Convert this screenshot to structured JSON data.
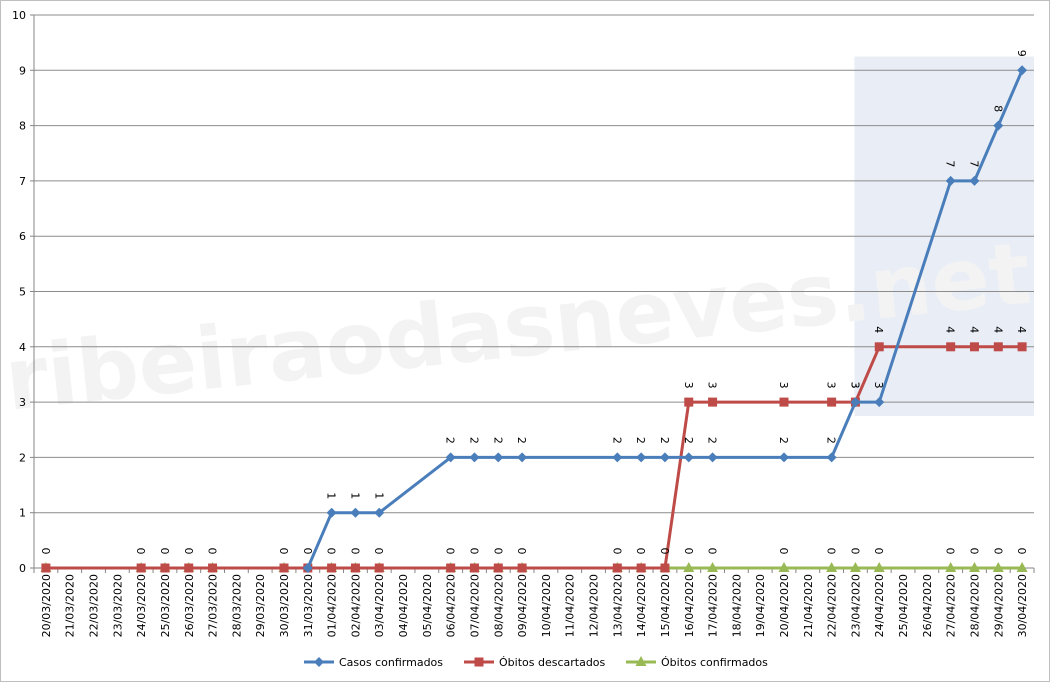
{
  "watermark": "ribeiraodasneves.net",
  "chart_data": {
    "type": "line",
    "title": "",
    "xlabel": "",
    "ylabel": "",
    "ylim": [
      0,
      10
    ],
    "yticks": [
      "0",
      "1",
      "2",
      "3",
      "4",
      "5",
      "6",
      "7",
      "8",
      "9",
      "10"
    ],
    "grid": true,
    "legend_position": "bottom",
    "categories": [
      "20/03/2020",
      "21/03/2020",
      "22/03/2020",
      "23/03/2020",
      "24/03/2020",
      "25/03/2020",
      "26/03/2020",
      "27/03/2020",
      "28/03/2020",
      "29/03/2020",
      "30/03/2020",
      "31/03/2020",
      "01/04/2020",
      "02/04/2020",
      "03/04/2020",
      "04/04/2020",
      "05/04/2020",
      "06/04/2020",
      "07/04/2020",
      "08/04/2020",
      "09/04/2020",
      "10/04/2020",
      "11/04/2020",
      "12/04/2020",
      "13/04/2020",
      "14/04/2020",
      "15/04/2020",
      "16/04/2020",
      "17/04/2020",
      "18/04/2020",
      "19/04/2020",
      "20/04/2020",
      "21/04/2020",
      "22/04/2020",
      "23/04/2020",
      "24/04/2020",
      "25/04/2020",
      "26/04/2020",
      "27/04/2020",
      "28/04/2020",
      "29/04/2020",
      "30/04/2020"
    ],
    "highlight_range": [
      "23/04/2020",
      "30/04/2020"
    ],
    "series": [
      {
        "name": "Casos confirmados",
        "color": "#4a7ebb",
        "marker": "diamond",
        "x": [
          "31/03/2020",
          "01/04/2020",
          "02/04/2020",
          "03/04/2020",
          "06/04/2020",
          "07/04/2020",
          "08/04/2020",
          "09/04/2020",
          "13/04/2020",
          "14/04/2020",
          "15/04/2020",
          "16/04/2020",
          "17/04/2020",
          "20/04/2020",
          "22/04/2020",
          "23/04/2020",
          "24/04/2020",
          "27/04/2020",
          "28/04/2020",
          "29/04/2020",
          "30/04/2020"
        ],
        "values": [
          0,
          1,
          1,
          1,
          2,
          2,
          2,
          2,
          2,
          2,
          2,
          2,
          2,
          2,
          2,
          3,
          3,
          7,
          7,
          8,
          9
        ],
        "labels": [
          "",
          "1",
          "1",
          "1",
          "2",
          "2",
          "2",
          "2",
          "2",
          "2",
          "2",
          "2",
          "2",
          "2",
          "2",
          "3",
          "3",
          "7",
          "7",
          "8",
          "9"
        ]
      },
      {
        "name": "Óbitos descartados",
        "color": "#be4b48",
        "marker": "square",
        "x": [
          "20/03/2020",
          "24/03/2020",
          "25/03/2020",
          "26/03/2020",
          "27/03/2020",
          "30/03/2020",
          "31/03/2020",
          "01/04/2020",
          "02/04/2020",
          "03/04/2020",
          "06/04/2020",
          "07/04/2020",
          "08/04/2020",
          "09/04/2020",
          "13/04/2020",
          "14/04/2020",
          "15/04/2020",
          "16/04/2020",
          "17/04/2020",
          "20/04/2020",
          "22/04/2020",
          "23/04/2020",
          "24/04/2020",
          "27/04/2020",
          "28/04/2020",
          "29/04/2020",
          "30/04/2020"
        ],
        "values": [
          0,
          0,
          0,
          0,
          0,
          0,
          0,
          0,
          0,
          0,
          0,
          0,
          0,
          0,
          0,
          0,
          0,
          3,
          3,
          3,
          3,
          3,
          4,
          4,
          4,
          4,
          4
        ],
        "labels": [
          "0",
          "0",
          "0",
          "0",
          "0",
          "0",
          "0",
          "0",
          "0",
          "0",
          "0",
          "0",
          "0",
          "0",
          "0",
          "0",
          "0",
          "3",
          "3",
          "3",
          "3",
          "3",
          "4",
          "4",
          "4",
          "4",
          "4"
        ]
      },
      {
        "name": "Óbitos confirmados",
        "color": "#98b954",
        "marker": "triangle",
        "x": [
          "20/03/2020",
          "24/03/2020",
          "25/03/2020",
          "26/03/2020",
          "27/03/2020",
          "30/03/2020",
          "01/04/2020",
          "02/04/2020",
          "03/04/2020",
          "06/04/2020",
          "07/04/2020",
          "08/04/2020",
          "09/04/2020",
          "13/04/2020",
          "14/04/2020",
          "15/04/2020",
          "16/04/2020",
          "17/04/2020",
          "20/04/2020",
          "22/04/2020",
          "23/04/2020",
          "24/04/2020",
          "27/04/2020",
          "28/04/2020",
          "29/04/2020",
          "30/04/2020"
        ],
        "values": [
          0,
          0,
          0,
          0,
          0,
          0,
          0,
          0,
          0,
          0,
          0,
          0,
          0,
          0,
          0,
          0,
          0,
          0,
          0,
          0,
          0,
          0,
          0,
          0,
          0,
          0
        ],
        "labels": [
          "",
          "",
          "",
          "",
          "",
          "",
          "",
          "",
          "",
          "",
          "",
          "",
          "",
          "",
          "",
          "",
          "0",
          "0",
          "0",
          "0",
          "0",
          "0",
          "0",
          "0",
          "0",
          "0"
        ]
      }
    ]
  }
}
